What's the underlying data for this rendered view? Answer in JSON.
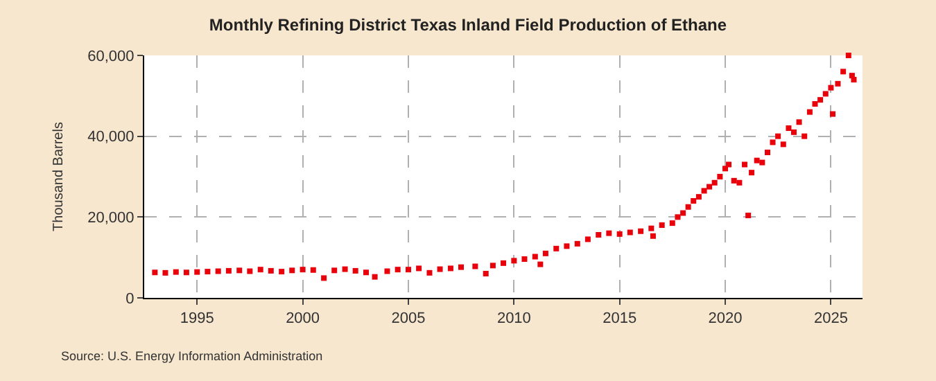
{
  "chart_data": {
    "type": "scatter",
    "title": "Monthly Refining District Texas Inland Field Production of Ethane",
    "ylabel": "Thousand Barrels",
    "x": [
      "1993-01",
      "1993-07",
      "1994-01",
      "1994-07",
      "1995-01",
      "1995-07",
      "1996-01",
      "1996-07",
      "1997-01",
      "1997-07",
      "1998-01",
      "1998-07",
      "1999-01",
      "1999-07",
      "2000-01",
      "2000-07",
      "2001-01",
      "2001-07",
      "2002-01",
      "2002-07",
      "2003-01",
      "2003-06",
      "2004-01",
      "2004-07",
      "2005-01",
      "2005-07",
      "2006-01",
      "2006-07",
      "2007-01",
      "2007-07",
      "2008-03",
      "2008-09",
      "2009-01",
      "2009-07",
      "2010-01",
      "2010-07",
      "2011-01",
      "2011-04",
      "2011-07",
      "2012-01",
      "2012-07",
      "2013-01",
      "2013-07",
      "2014-01",
      "2014-07",
      "2015-01",
      "2015-07",
      "2016-01",
      "2016-07",
      "2016-08",
      "2017-01",
      "2017-07",
      "2017-10",
      "2018-01",
      "2018-04",
      "2018-07",
      "2018-10",
      "2019-01",
      "2019-04",
      "2019-07",
      "2019-10",
      "2020-01",
      "2020-03",
      "2020-06",
      "2020-09",
      "2020-12",
      "2021-02",
      "2021-04",
      "2021-07",
      "2021-10",
      "2022-01",
      "2022-04",
      "2022-07",
      "2022-10",
      "2023-01",
      "2023-04",
      "2023-07",
      "2023-10",
      "2024-01",
      "2024-04",
      "2024-07",
      "2024-10",
      "2025-01",
      "2025-02",
      "2025-05",
      "2025-08",
      "2025-11",
      "2026-01",
      "2026-02"
    ],
    "series": [
      {
        "color": "#e8000b",
        "values": [
          6300,
          6200,
          6400,
          6300,
          6400,
          6500,
          6600,
          6700,
          6800,
          6600,
          7000,
          6700,
          6500,
          6800,
          7000,
          6900,
          4900,
          6800,
          7100,
          6700,
          6300,
          5200,
          6600,
          7000,
          7000,
          7300,
          6200,
          7100,
          7300,
          7600,
          7800,
          6000,
          8000,
          8600,
          9200,
          9600,
          10200,
          8300,
          11000,
          12200,
          12800,
          13400,
          14500,
          15600,
          16000,
          15800,
          16200,
          16500,
          17200,
          15300,
          18000,
          18500,
          20000,
          21000,
          22500,
          24000,
          25000,
          26500,
          27500,
          28500,
          30000,
          32000,
          33000,
          29000,
          28500,
          33000,
          20400,
          31000,
          34000,
          33500,
          36000,
          38500,
          40000,
          38000,
          42000,
          41000,
          43500,
          40000,
          46000,
          48000,
          49000,
          50500,
          52000,
          45500,
          53000,
          56000,
          60000,
          55000,
          54000
        ]
      }
    ],
    "marker": "square",
    "xlim": [
      "1992-07",
      "2026-07"
    ],
    "xticks": [
      {
        "value": "1995-01",
        "label": "1995"
      },
      {
        "value": "2000-01",
        "label": "2000"
      },
      {
        "value": "2005-01",
        "label": "2005"
      },
      {
        "value": "2010-01",
        "label": "2010"
      },
      {
        "value": "2015-01",
        "label": "2015"
      },
      {
        "value": "2020-01",
        "label": "2020"
      },
      {
        "value": "2025-01",
        "label": "2025"
      }
    ],
    "ylim": [
      0,
      60000
    ],
    "yticks": [
      {
        "value": 0,
        "label": "0"
      },
      {
        "value": 20000,
        "label": "20,000"
      },
      {
        "value": 40000,
        "label": "40,000"
      },
      {
        "value": 60000,
        "label": "60,000"
      }
    ],
    "grid": true,
    "annotations": [
      "Source: U.S. Energy Information Administration"
    ]
  }
}
